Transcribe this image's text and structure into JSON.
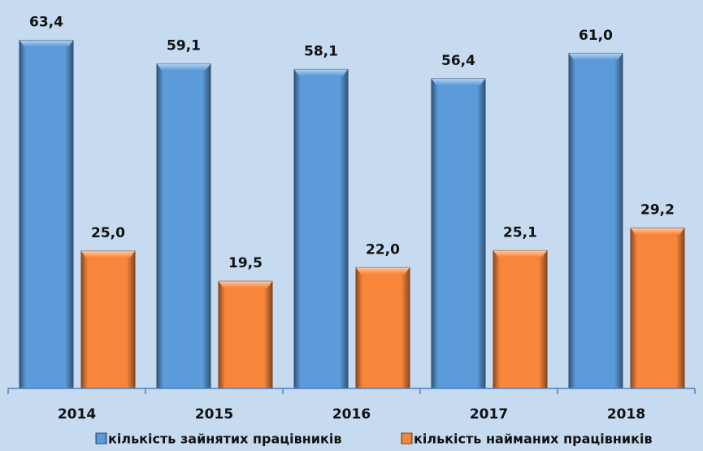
{
  "chart_data": {
    "type": "bar",
    "categories": [
      "2014",
      "2015",
      "2016",
      "2017",
      "2018"
    ],
    "series": [
      {
        "name": "кількість зайнятих працівників",
        "color": "#5b9bd9",
        "values": [
          63.4,
          59.1,
          58.1,
          56.4,
          61.0
        ],
        "value_labels": [
          "63,4",
          "59,1",
          "58,1",
          "56,4",
          "61,0"
        ]
      },
      {
        "name": "кількість найманих працівників",
        "color": "#f7853a",
        "values": [
          25.0,
          19.5,
          22.0,
          25.1,
          29.2
        ],
        "value_labels": [
          "25,0",
          "19,5",
          "22,0",
          "25,1",
          "29,2"
        ]
      }
    ],
    "ylim": [
      0,
      70
    ],
    "legend": "bottom"
  }
}
